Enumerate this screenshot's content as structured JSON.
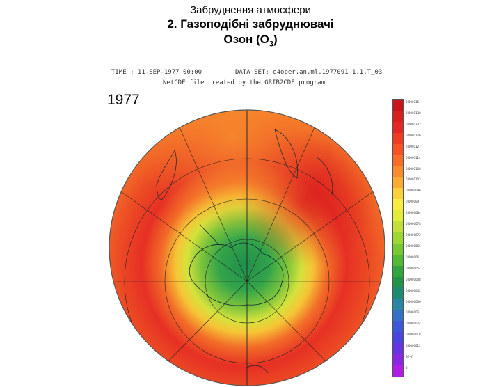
{
  "slide": {
    "supertitle": "Забруднення атмосфери",
    "title": "2. Газоподібні забруднювачі",
    "subtitle_prefix": "Озон (О",
    "subtitle_sub": "3",
    "subtitle_suffix": ")"
  },
  "figure": {
    "header_line1_left": "TIME : 11-SEP-1977 00:00",
    "header_line1_right": "DATA SET: e4oper.an.ml.1977091 1.1.T_03",
    "header_line2": "NetCDF file created by the GRIB2CDF program",
    "year_label": "1977",
    "colorbar_colors": [
      "#c8141a",
      "#d81e1e",
      "#e62622",
      "#f03a22",
      "#f65226",
      "#f86c2a",
      "#fa8a2e",
      "#fbab32",
      "#fbd03a",
      "#f8ec40",
      "#e2ec3a",
      "#c2e038",
      "#9ed634",
      "#78c832",
      "#52b934",
      "#32a63c",
      "#249248",
      "#1e8a72",
      "#2a86a4",
      "#3470c8",
      "#3a58d8",
      "#4a44e0",
      "#6634e2",
      "#8a26e4",
      "#b01ee6"
    ],
    "colorbar_labels": [
      "0.000015",
      "0.0000138",
      "0.0000132",
      "0.0000126",
      "0.000012",
      "0.0000114",
      "0.0000108",
      "0.0000102",
      "0.0000096",
      "0.000009",
      "0.0000084",
      "0.0000078",
      "0.0000072",
      "0.0000066",
      "0.000006",
      "0.0000054",
      "0.0000048",
      "0.0000042",
      "0.0000036",
      "0.000003",
      "0.0000024",
      "0.0000018",
      "0.0000012",
      "6E-07",
      "0"
    ]
  }
}
